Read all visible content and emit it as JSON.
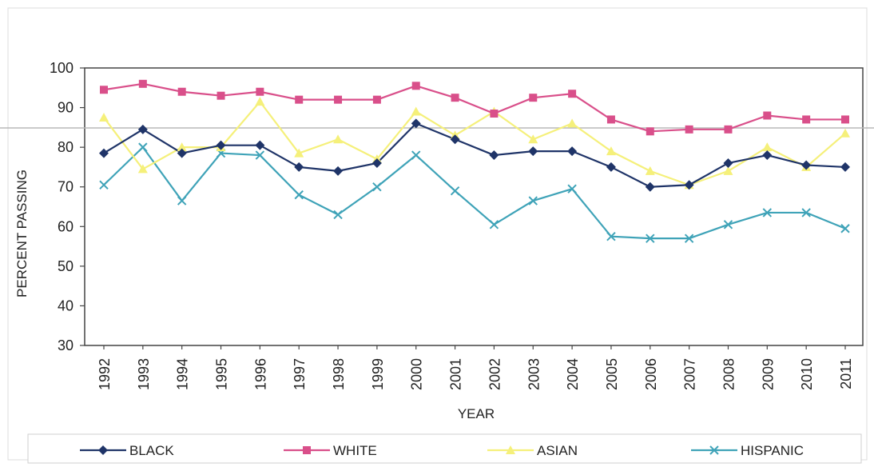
{
  "chart_data": {
    "type": "line",
    "title": "",
    "xlabel": "YEAR",
    "ylabel": "PERCENT PASSING",
    "ylim": [
      30,
      100
    ],
    "yticks": [
      30,
      40,
      50,
      60,
      70,
      80,
      90,
      100
    ],
    "grid": false,
    "legend_position": "bottom",
    "categories": [
      "1992",
      "1993",
      "1994",
      "1995",
      "1996",
      "1997",
      "1998",
      "1999",
      "2000",
      "2001",
      "2002",
      "2003",
      "2004",
      "2005",
      "2006",
      "2007",
      "2008",
      "2009",
      "2010",
      "2011"
    ],
    "series": [
      {
        "name": "BLACK",
        "color": "#1f3468",
        "marker": "diamond",
        "values": [
          78.5,
          84.5,
          78.5,
          80.5,
          80.5,
          75,
          74,
          76,
          86,
          82,
          78,
          79,
          79,
          75,
          70,
          70.5,
          76,
          78,
          75.5,
          75
        ]
      },
      {
        "name": "WHITE",
        "color": "#d94f8a",
        "marker": "square",
        "values": [
          94.5,
          96,
          94,
          93,
          94,
          92,
          92,
          92,
          95.5,
          92.5,
          88.5,
          92.5,
          93.5,
          87,
          84,
          84.5,
          84.5,
          88,
          87,
          87
        ]
      },
      {
        "name": "ASIAN",
        "color": "#f5f07a",
        "marker": "triangle",
        "values": [
          87.5,
          74.5,
          80,
          80,
          91.5,
          78.5,
          82,
          77,
          89,
          83,
          89,
          82,
          86,
          79,
          74,
          70.5,
          74,
          80,
          75,
          83.5
        ]
      },
      {
        "name": "HISPANIC",
        "color": "#3fa3b8",
        "marker": "x",
        "values": [
          70.5,
          80,
          66.5,
          78.5,
          78,
          68,
          63,
          70,
          78,
          69,
          60.5,
          66.5,
          69.5,
          57.5,
          57,
          57,
          60.5,
          63.5,
          63.5,
          59.5
        ]
      }
    ]
  }
}
